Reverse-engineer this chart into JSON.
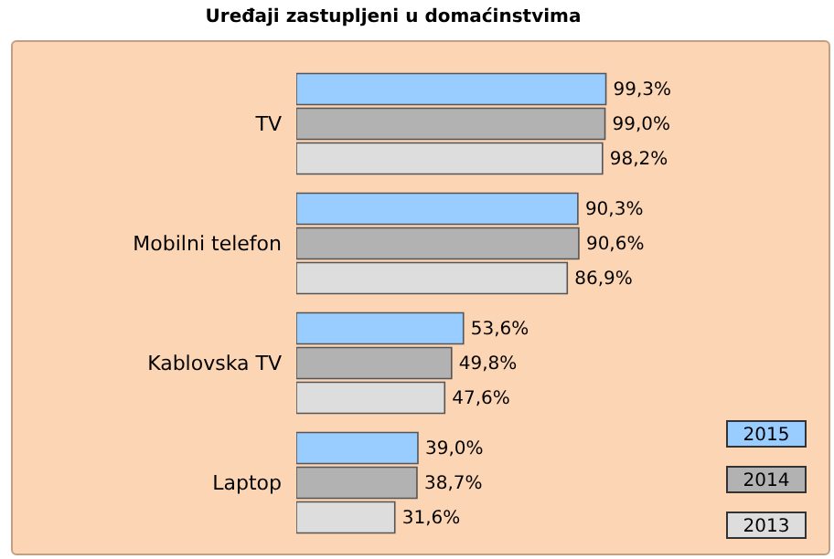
{
  "chart_data": {
    "type": "bar",
    "orientation": "horizontal",
    "title": "Uređaji zastupljeni u domaćinstvima",
    "categories": [
      "TV",
      "Mobilni telefon",
      "Kablovska TV",
      "Laptop"
    ],
    "tick_labels": "y",
    "legend": "bottom right",
    "series": [
      {
        "name": "2015",
        "color": "#99ccff",
        "values": [
          99.3,
          90.3,
          53.6,
          39.0
        ],
        "value_labels": [
          "99,3%",
          "90,3%",
          "53,6%",
          "39,0%"
        ]
      },
      {
        "name": "2014",
        "color": "#b2b2b2",
        "values": [
          99.0,
          90.6,
          49.8,
          38.7
        ],
        "value_labels": [
          "99,0%",
          "90,6%",
          "49,8%",
          "38,7%"
        ]
      },
      {
        "name": "2013",
        "color": "#dddddd",
        "values": [
          98.2,
          86.9,
          47.6,
          31.6
        ],
        "value_labels": [
          "98,2%",
          "86,9%",
          "47,6%",
          "31,6%"
        ]
      }
    ]
  }
}
